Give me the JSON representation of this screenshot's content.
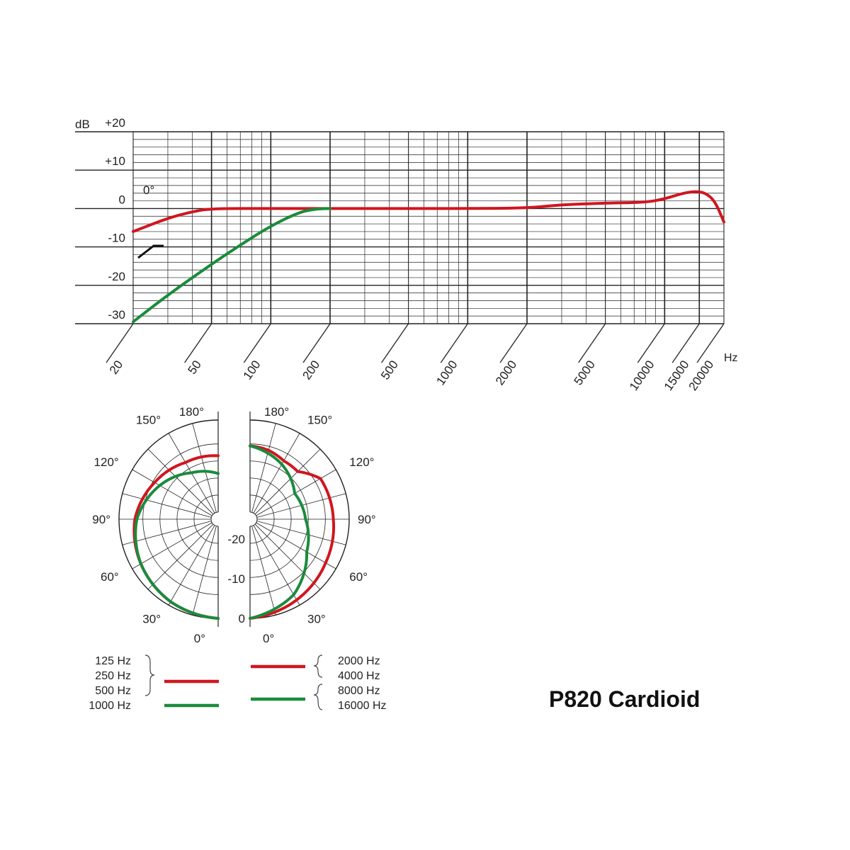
{
  "chart_data": [
    {
      "type": "line",
      "xscale": "log",
      "xlim": [
        20,
        20000
      ],
      "ylim": [
        -30,
        20
      ],
      "xlabel": "Hz",
      "ylabel": "dB",
      "grid": true,
      "x_ticks": [
        "20",
        "50",
        "100",
        "200",
        "500",
        "1000",
        "2000",
        "5000",
        "10000",
        "15000",
        "20000"
      ],
      "y_ticks": [
        "+20",
        "+10",
        "0",
        "-10",
        "-20",
        "-30"
      ],
      "annotations": {
        "angle": "0°"
      },
      "series": [
        {
          "color": "#d0161f",
          "points": [
            [
              20,
              -6
            ],
            [
              30,
              -2.5
            ],
            [
              40,
              -0.8
            ],
            [
              50,
              0
            ],
            [
              100,
              0
            ],
            [
              200,
              0
            ],
            [
              500,
              0
            ],
            [
              1000,
              0
            ],
            [
              2000,
              0.1
            ],
            [
              3000,
              1.0
            ],
            [
              5000,
              1.4
            ],
            [
              8000,
              1.6
            ],
            [
              10000,
              2.5
            ],
            [
              12000,
              3.8
            ],
            [
              14000,
              4.5
            ],
            [
              16000,
              4.2
            ],
            [
              18000,
              2.0
            ],
            [
              20000,
              -3.5
            ]
          ]
        },
        {
          "color": "#1a8b3c",
          "points": [
            [
              20,
              -29.5
            ],
            [
              30,
              -22.5
            ],
            [
              50,
              -14.5
            ],
            [
              70,
              -9.5
            ],
            [
              100,
              -4.5
            ],
            [
              140,
              -0.9
            ],
            [
              170,
              -0.1
            ],
            [
              200,
              0
            ]
          ]
        }
      ]
    },
    {
      "type": "polar",
      "angle_labels": [
        "180°",
        "150°",
        "120°",
        "90°",
        "60°",
        "30°",
        "0°"
      ],
      "radial_labels": [
        "-20",
        "-10",
        "0"
      ],
      "rlim": [
        -25,
        0
      ],
      "series": [
        {
          "side": "left",
          "color": "#d0161f",
          "frequencies": [
            "125 Hz",
            "250 Hz",
            "500 Hz"
          ],
          "points": [
            [
              0,
              0
            ],
            [
              30,
              -1
            ],
            [
              60,
              -2.5
            ],
            [
              90,
              -4
            ],
            [
              120,
              -6.5
            ],
            [
              150,
              -8.5
            ],
            [
              180,
              -9
            ]
          ]
        },
        {
          "side": "left",
          "color": "#1a8b3c",
          "frequencies": [
            "1000 Hz"
          ],
          "points": [
            [
              0,
              0
            ],
            [
              30,
              -1
            ],
            [
              60,
              -2.5
            ],
            [
              90,
              -4.5
            ],
            [
              120,
              -8
            ],
            [
              150,
              -11.5
            ],
            [
              180,
              -13.5
            ]
          ]
        },
        {
          "side": "right",
          "color": "#d0161f",
          "frequencies": [
            "2000 Hz",
            "4000 Hz"
          ],
          "points": [
            [
              0,
              0
            ],
            [
              30,
              -1.5
            ],
            [
              60,
              -3
            ],
            [
              90,
              -4
            ],
            [
              120,
              -4.5
            ],
            [
              135,
              -8
            ],
            [
              150,
              -8
            ],
            [
              165,
              -7
            ],
            [
              180,
              -6.5
            ]
          ]
        },
        {
          "side": "right",
          "color": "#1a8b3c",
          "frequencies": [
            "8000 Hz",
            "16000 Hz"
          ],
          "points": [
            [
              0,
              0
            ],
            [
              20,
              -2
            ],
            [
              30,
              -3
            ],
            [
              60,
              -8.5
            ],
            [
              90,
              -11
            ],
            [
              120,
              -12
            ],
            [
              150,
              -9
            ],
            [
              180,
              -6.5
            ]
          ]
        }
      ]
    }
  ],
  "legend": {
    "left_group_red": [
      "125 Hz",
      "250 Hz",
      "500 Hz"
    ],
    "left_green": "1000 Hz",
    "right_group_red": [
      "2000 Hz",
      "4000 Hz"
    ],
    "right_group_green": [
      "8000 Hz",
      "16000 Hz"
    ]
  },
  "title": "P820 Cardioid"
}
